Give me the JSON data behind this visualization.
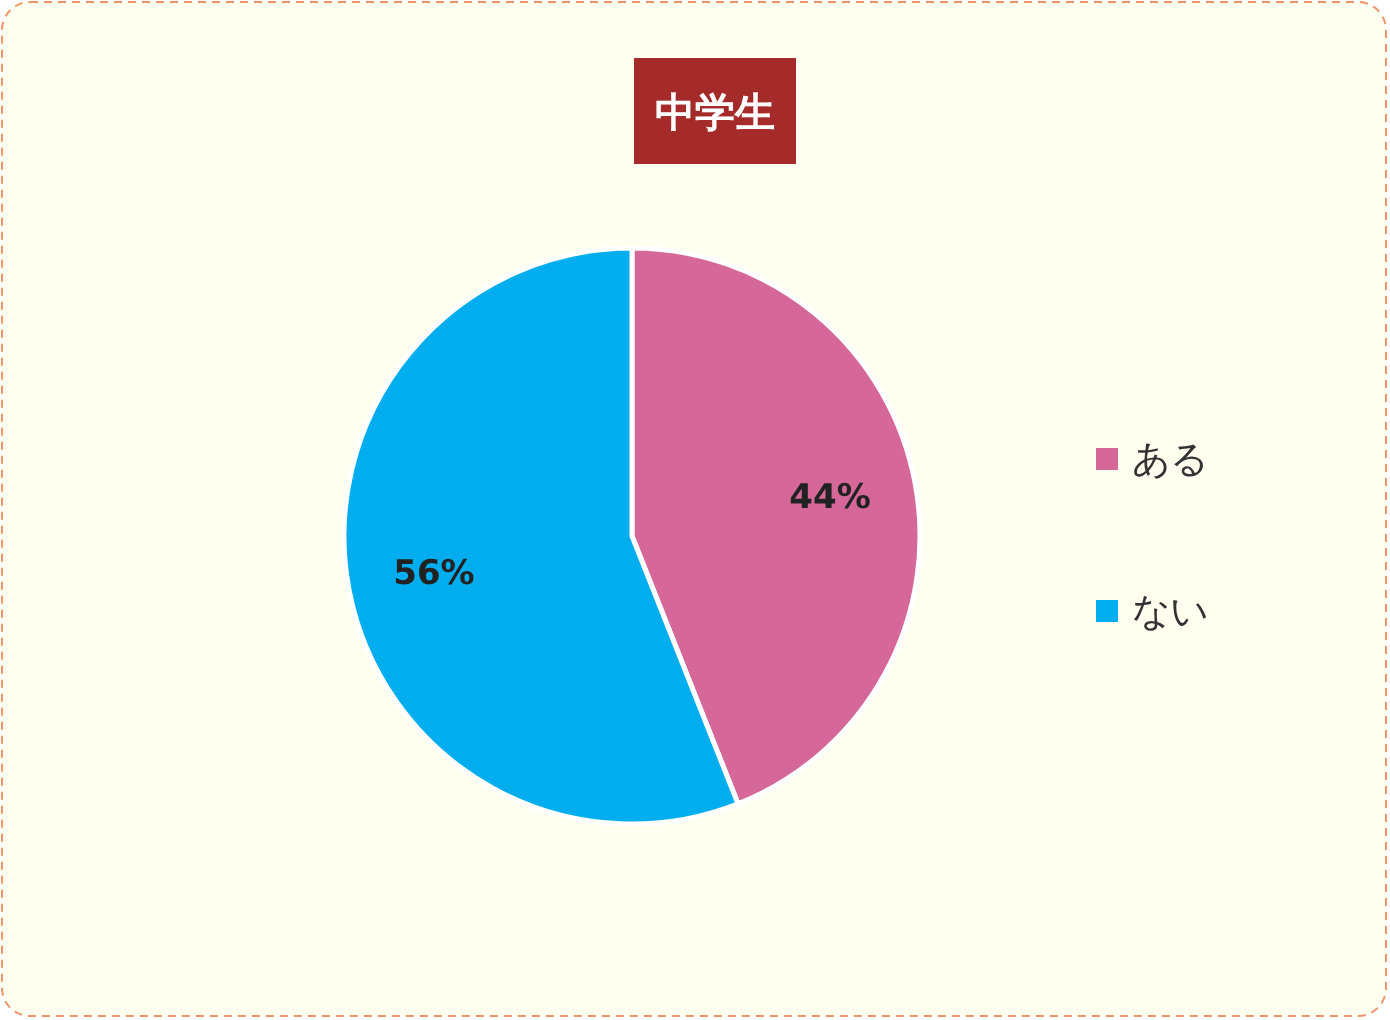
{
  "chart_data": {
    "type": "pie",
    "title": "中学生",
    "categories": [
      "ある",
      "ない"
    ],
    "values": [
      44,
      56
    ],
    "value_labels": [
      "44%",
      "56%"
    ],
    "colors": [
      "#d66799",
      "#00adef"
    ],
    "legend": "right"
  }
}
